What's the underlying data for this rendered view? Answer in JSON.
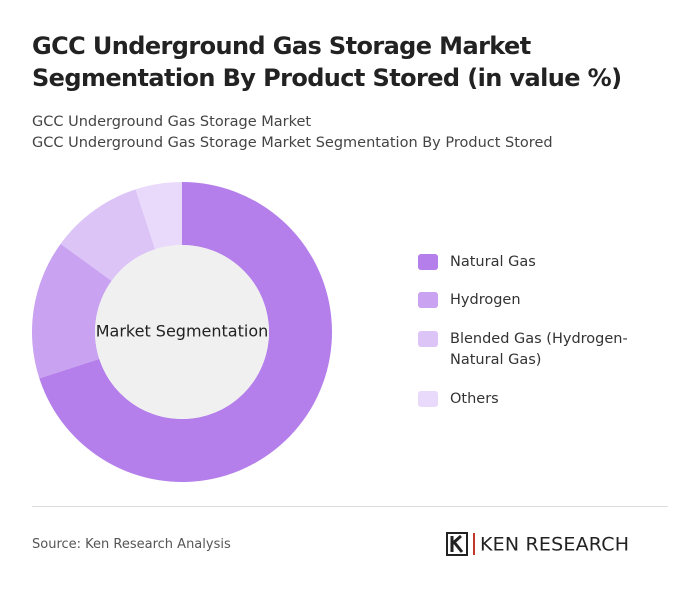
{
  "header": {
    "title": "GCC Underground Gas Storage Market Segmentation By Product Stored (in value %)",
    "subtitle_lines": [
      "GCC Underground Gas Storage Market",
      "GCC Underground Gas Storage Market Segmentation By Product Stored"
    ]
  },
  "chart_data": {
    "type": "donut",
    "center_label": "Market Segmentation",
    "categories": [
      "Natural Gas",
      "Hydrogen",
      "Blended Gas (Hydrogen-Natural Gas)",
      "Others"
    ],
    "values": [
      70,
      15,
      10,
      5
    ],
    "colors": [
      "#b47fea",
      "#c9a2f1",
      "#dcc4f7",
      "#e9dafb"
    ]
  },
  "footer": {
    "source": "Source: Ken Research Analysis",
    "brand": "KEN RESEARCH"
  }
}
